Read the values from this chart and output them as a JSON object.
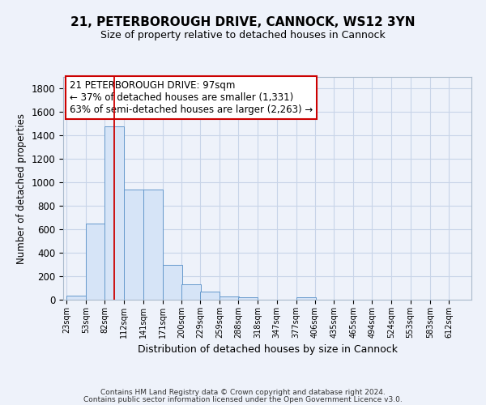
{
  "title1": "21, PETERBOROUGH DRIVE, CANNOCK, WS12 3YN",
  "title2": "Size of property relative to detached houses in Cannock",
  "xlabel": "Distribution of detached houses by size in Cannock",
  "ylabel": "Number of detached properties",
  "bin_labels": [
    "23sqm",
    "53sqm",
    "82sqm",
    "112sqm",
    "141sqm",
    "171sqm",
    "200sqm",
    "229sqm",
    "259sqm",
    "288sqm",
    "318sqm",
    "347sqm",
    "377sqm",
    "406sqm",
    "435sqm",
    "465sqm",
    "494sqm",
    "524sqm",
    "553sqm",
    "583sqm",
    "612sqm"
  ],
  "bin_edges": [
    23,
    53,
    82,
    112,
    141,
    171,
    200,
    229,
    259,
    288,
    318,
    347,
    377,
    406,
    435,
    465,
    494,
    524,
    553,
    583,
    612
  ],
  "bar_heights": [
    35,
    650,
    1480,
    940,
    940,
    295,
    130,
    70,
    25,
    20,
    0,
    0,
    20,
    0,
    0,
    0,
    0,
    0,
    0,
    0
  ],
  "bar_color": "#d6e4f7",
  "bar_edge_color": "#6699cc",
  "grid_color": "#c8d4e8",
  "property_sqm": 97,
  "red_line_color": "#cc0000",
  "annotation_text": "21 PETERBOROUGH DRIVE: 97sqm\n← 37% of detached houses are smaller (1,331)\n63% of semi-detached houses are larger (2,263) →",
  "annotation_box_color": "#ffffff",
  "annotation_border_color": "#cc0000",
  "ylim": [
    0,
    1900
  ],
  "yticks": [
    0,
    200,
    400,
    600,
    800,
    1000,
    1200,
    1400,
    1600,
    1800
  ],
  "footer1": "Contains HM Land Registry data © Crown copyright and database right 2024.",
  "footer2": "Contains public sector information licensed under the Open Government Licence v3.0.",
  "bg_color": "#eef2fa"
}
